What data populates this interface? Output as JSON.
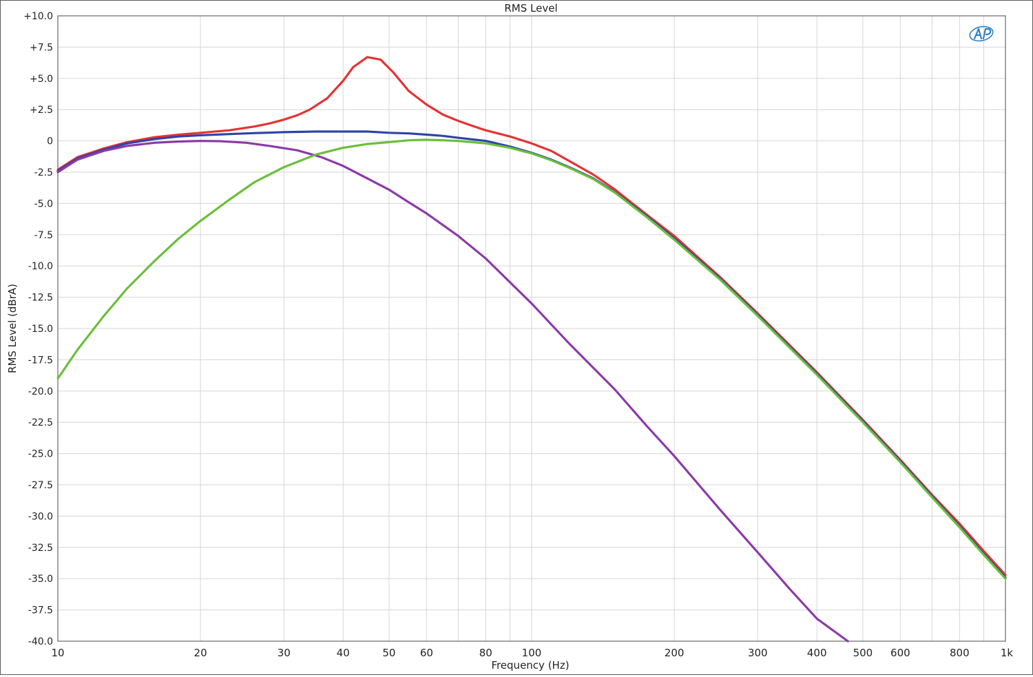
{
  "chart_data": {
    "type": "line",
    "title": "RMS Level",
    "xlabel": "Frequency (Hz)",
    "ylabel": "RMS Level (dBrA)",
    "x_scale": "log",
    "xlim": [
      10,
      1000
    ],
    "ylim": [
      -40,
      10
    ],
    "grid": true,
    "logo_text": "AP",
    "y_ticks": [
      {
        "value": 10,
        "label": "+10.0"
      },
      {
        "value": 7.5,
        "label": "+7.5"
      },
      {
        "value": 5,
        "label": "+5.0"
      },
      {
        "value": 2.5,
        "label": "+2.5"
      },
      {
        "value": 0,
        "label": "0"
      },
      {
        "value": -2.5,
        "label": "-2.5"
      },
      {
        "value": -5,
        "label": "-5.0"
      },
      {
        "value": -7.5,
        "label": "-7.5"
      },
      {
        "value": -10,
        "label": "-10.0"
      },
      {
        "value": -12.5,
        "label": "-12.5"
      },
      {
        "value": -15,
        "label": "-15.0"
      },
      {
        "value": -17.5,
        "label": "-17.5"
      },
      {
        "value": -20,
        "label": "-20.0"
      },
      {
        "value": -22.5,
        "label": "-22.5"
      },
      {
        "value": -25,
        "label": "-25.0"
      },
      {
        "value": -27.5,
        "label": "-27.5"
      },
      {
        "value": -30,
        "label": "-30.0"
      },
      {
        "value": -32.5,
        "label": "-32.5"
      },
      {
        "value": -35,
        "label": "-35.0"
      },
      {
        "value": -37.5,
        "label": "-37.5"
      },
      {
        "value": -40,
        "label": "-40.0"
      }
    ],
    "x_ticks": [
      {
        "value": 10,
        "label": "10"
      },
      {
        "value": 20,
        "label": "20"
      },
      {
        "value": 30,
        "label": "30"
      },
      {
        "value": 40,
        "label": "40"
      },
      {
        "value": 50,
        "label": "50"
      },
      {
        "value": 60,
        "label": "60"
      },
      {
        "value": 80,
        "label": "80"
      },
      {
        "value": 100,
        "label": "100"
      },
      {
        "value": 200,
        "label": "200"
      },
      {
        "value": 300,
        "label": "300"
      },
      {
        "value": 400,
        "label": "400"
      },
      {
        "value": 500,
        "label": "500"
      },
      {
        "value": 600,
        "label": "600"
      },
      {
        "value": 800,
        "label": "800"
      },
      {
        "value": 1000,
        "label": "1k"
      }
    ],
    "x_grid": [
      10,
      20,
      30,
      40,
      50,
      60,
      70,
      80,
      90,
      100,
      200,
      300,
      400,
      500,
      600,
      700,
      800,
      900,
      1000
    ],
    "series": [
      {
        "color": "#e63232",
        "points": [
          [
            10,
            -2.3
          ],
          [
            11,
            -1.3
          ],
          [
            12.5,
            -0.6
          ],
          [
            14,
            -0.1
          ],
          [
            16,
            0.3
          ],
          [
            18,
            0.5
          ],
          [
            20,
            0.65
          ],
          [
            23,
            0.85
          ],
          [
            26,
            1.15
          ],
          [
            28,
            1.4
          ],
          [
            30,
            1.7
          ],
          [
            32,
            2.05
          ],
          [
            34,
            2.5
          ],
          [
            37,
            3.4
          ],
          [
            40,
            4.8
          ],
          [
            42,
            5.9
          ],
          [
            45,
            6.7
          ],
          [
            48,
            6.5
          ],
          [
            51,
            5.5
          ],
          [
            55,
            4.0
          ],
          [
            60,
            2.9
          ],
          [
            65,
            2.1
          ],
          [
            70,
            1.6
          ],
          [
            75,
            1.2
          ],
          [
            80,
            0.85
          ],
          [
            90,
            0.35
          ],
          [
            100,
            -0.2
          ],
          [
            110,
            -0.8
          ],
          [
            120,
            -1.6
          ],
          [
            135,
            -2.7
          ],
          [
            150,
            -3.9
          ],
          [
            175,
            -5.9
          ],
          [
            200,
            -7.6
          ],
          [
            250,
            -10.9
          ],
          [
            300,
            -13.8
          ],
          [
            400,
            -18.5
          ],
          [
            500,
            -22.3
          ],
          [
            600,
            -25.5
          ],
          [
            700,
            -28.3
          ],
          [
            800,
            -30.6
          ],
          [
            900,
            -32.8
          ],
          [
            1000,
            -34.7
          ]
        ]
      },
      {
        "color": "#2e44a8",
        "points": [
          [
            10,
            -2.4
          ],
          [
            11,
            -1.4
          ],
          [
            12.5,
            -0.7
          ],
          [
            14,
            -0.2
          ],
          [
            16,
            0.15
          ],
          [
            18,
            0.35
          ],
          [
            20,
            0.45
          ],
          [
            25,
            0.6
          ],
          [
            30,
            0.7
          ],
          [
            35,
            0.75
          ],
          [
            40,
            0.75
          ],
          [
            45,
            0.75
          ],
          [
            50,
            0.65
          ],
          [
            55,
            0.6
          ],
          [
            60,
            0.5
          ],
          [
            65,
            0.4
          ],
          [
            70,
            0.25
          ],
          [
            80,
            0.0
          ],
          [
            90,
            -0.45
          ],
          [
            100,
            -0.95
          ],
          [
            110,
            -1.5
          ],
          [
            120,
            -2.1
          ],
          [
            135,
            -3.0
          ],
          [
            150,
            -4.1
          ],
          [
            175,
            -6.0
          ],
          [
            200,
            -7.8
          ],
          [
            250,
            -11.0
          ],
          [
            300,
            -13.9
          ],
          [
            400,
            -18.6
          ],
          [
            500,
            -22.4
          ],
          [
            600,
            -25.6
          ],
          [
            700,
            -28.4
          ],
          [
            800,
            -30.8
          ],
          [
            900,
            -33.0
          ],
          [
            1000,
            -34.9
          ]
        ]
      },
      {
        "color": "#8c3aa8",
        "points": [
          [
            10,
            -2.5
          ],
          [
            11,
            -1.5
          ],
          [
            12.5,
            -0.8
          ],
          [
            14,
            -0.4
          ],
          [
            16,
            -0.15
          ],
          [
            18,
            -0.05
          ],
          [
            20,
            0.0
          ],
          [
            22,
            -0.02
          ],
          [
            25,
            -0.15
          ],
          [
            28,
            -0.4
          ],
          [
            32,
            -0.75
          ],
          [
            36,
            -1.3
          ],
          [
            40,
            -2.0
          ],
          [
            45,
            -3.0
          ],
          [
            50,
            -3.9
          ],
          [
            55,
            -4.9
          ],
          [
            60,
            -5.8
          ],
          [
            70,
            -7.6
          ],
          [
            80,
            -9.4
          ],
          [
            90,
            -11.3
          ],
          [
            100,
            -13.0
          ],
          [
            120,
            -16.2
          ],
          [
            150,
            -19.9
          ],
          [
            175,
            -22.8
          ],
          [
            200,
            -25.2
          ],
          [
            250,
            -29.5
          ],
          [
            300,
            -32.9
          ],
          [
            350,
            -35.8
          ],
          [
            400,
            -38.2
          ],
          [
            465,
            -40.0
          ]
        ]
      },
      {
        "color": "#6abf3a",
        "points": [
          [
            10,
            -19.0
          ],
          [
            11,
            -16.7
          ],
          [
            12.5,
            -14.0
          ],
          [
            14,
            -11.8
          ],
          [
            16,
            -9.6
          ],
          [
            18,
            -7.8
          ],
          [
            20,
            -6.4
          ],
          [
            23,
            -4.7
          ],
          [
            26,
            -3.3
          ],
          [
            30,
            -2.1
          ],
          [
            35,
            -1.1
          ],
          [
            40,
            -0.55
          ],
          [
            45,
            -0.25
          ],
          [
            50,
            -0.1
          ],
          [
            55,
            0.05
          ],
          [
            60,
            0.1
          ],
          [
            65,
            0.05
          ],
          [
            70,
            0.0
          ],
          [
            80,
            -0.2
          ],
          [
            90,
            -0.55
          ],
          [
            100,
            -1.0
          ],
          [
            110,
            -1.55
          ],
          [
            120,
            -2.15
          ],
          [
            135,
            -3.05
          ],
          [
            150,
            -4.15
          ],
          [
            175,
            -6.1
          ],
          [
            200,
            -7.9
          ],
          [
            250,
            -11.1
          ],
          [
            300,
            -14.0
          ],
          [
            400,
            -18.7
          ],
          [
            500,
            -22.5
          ],
          [
            600,
            -25.7
          ],
          [
            700,
            -28.5
          ],
          [
            800,
            -30.9
          ],
          [
            900,
            -33.1
          ],
          [
            1000,
            -35.0
          ]
        ]
      }
    ]
  }
}
